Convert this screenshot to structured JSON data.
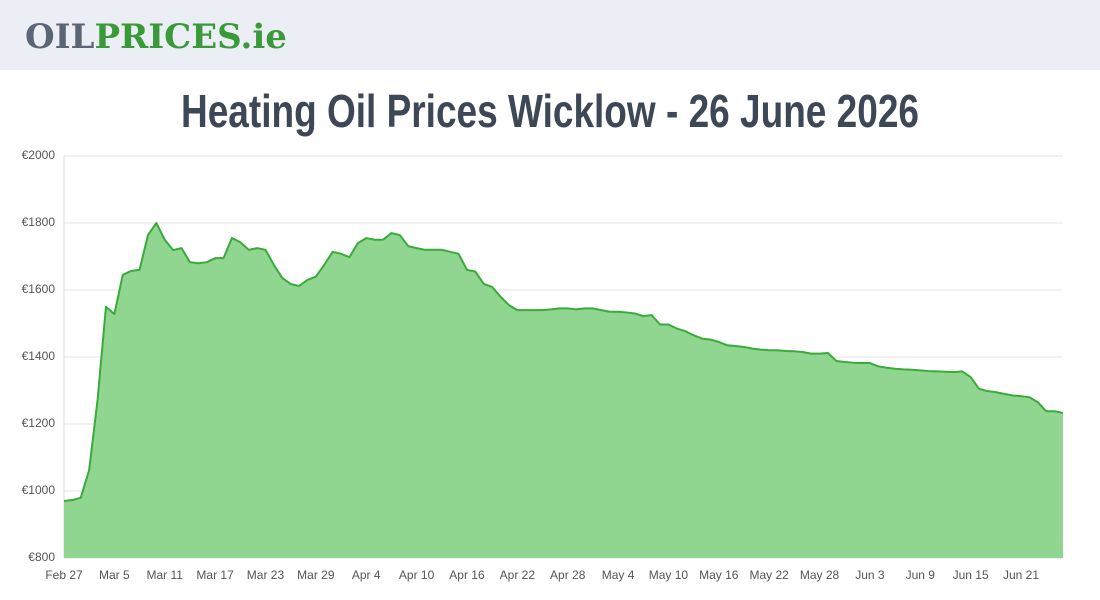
{
  "header": {
    "logo": [
      "OIL",
      "PRICES.ie"
    ]
  },
  "chart_data": {
    "type": "area",
    "title": "Heating Oil Prices Wicklow - 26 June 2026",
    "categories": [
      "Feb 27",
      null,
      null,
      null,
      null,
      null,
      "Mar 5",
      null,
      null,
      null,
      null,
      null,
      "Mar 11",
      null,
      null,
      null,
      null,
      null,
      "Mar 17",
      null,
      null,
      null,
      null,
      null,
      "Mar 23",
      null,
      null,
      null,
      null,
      null,
      "Mar 29",
      null,
      null,
      null,
      null,
      null,
      "Apr 4",
      null,
      null,
      null,
      null,
      null,
      "Apr 10",
      null,
      null,
      null,
      null,
      null,
      "Apr 16",
      null,
      null,
      null,
      null,
      null,
      "Apr 22",
      null,
      null,
      null,
      null,
      null,
      "Apr 28",
      null,
      null,
      null,
      null,
      null,
      "May 4",
      null,
      null,
      null,
      null,
      null,
      "May 10",
      null,
      null,
      null,
      null,
      null,
      "May 16",
      null,
      null,
      null,
      null,
      null,
      "May 22",
      null,
      null,
      null,
      null,
      null,
      "May 28",
      null,
      null,
      null,
      null,
      null,
      "Jun 3",
      null,
      null,
      null,
      null,
      null,
      "Jun 9",
      null,
      null,
      null,
      null,
      null,
      "Jun 15",
      null,
      null,
      null,
      null,
      null,
      "Jun 21",
      null,
      null,
      null,
      null,
      null
    ],
    "values": [
      970,
      973,
      980,
      1063,
      1272,
      1550,
      1528,
      1645,
      1657,
      1660,
      1764,
      1800,
      1750,
      1719,
      1725,
      1683,
      1680,
      1683,
      1695,
      1695,
      1755,
      1743,
      1720,
      1725,
      1720,
      1675,
      1636,
      1618,
      1612,
      1630,
      1640,
      1675,
      1714,
      1708,
      1698,
      1740,
      1755,
      1750,
      1750,
      1770,
      1764,
      1731,
      1725,
      1720,
      1720,
      1720,
      1714,
      1708,
      1660,
      1655,
      1618,
      1609,
      1580,
      1555,
      1540,
      1540,
      1540,
      1540,
      1542,
      1545,
      1545,
      1542,
      1545,
      1545,
      1540,
      1535,
      1535,
      1533,
      1530,
      1522,
      1525,
      1497,
      1497,
      1485,
      1477,
      1465,
      1455,
      1452,
      1445,
      1435,
      1433,
      1430,
      1425,
      1422,
      1420,
      1420,
      1418,
      1417,
      1415,
      1410,
      1410,
      1412,
      1388,
      1385,
      1383,
      1382,
      1382,
      1372,
      1368,
      1365,
      1363,
      1362,
      1360,
      1358,
      1357,
      1356,
      1355,
      1357,
      1340,
      1305,
      1298,
      1295,
      1290,
      1285,
      1283,
      1280,
      1265,
      1238,
      1238,
      1233
    ],
    "color": "#3aaa3a",
    "fill_color": "#90d690",
    "ylim": [
      800,
      2000
    ],
    "yticks": [
      {
        "value": 800,
        "label": "€800"
      },
      {
        "value": 1000,
        "label": "€1000"
      },
      {
        "value": 1200,
        "label": "€1200"
      },
      {
        "value": 1400,
        "label": "€1400"
      },
      {
        "value": 1600,
        "label": "€1600"
      },
      {
        "value": 1800,
        "label": "€1800"
      },
      {
        "value": 2000,
        "label": "€2000"
      }
    ],
    "grid": true
  }
}
